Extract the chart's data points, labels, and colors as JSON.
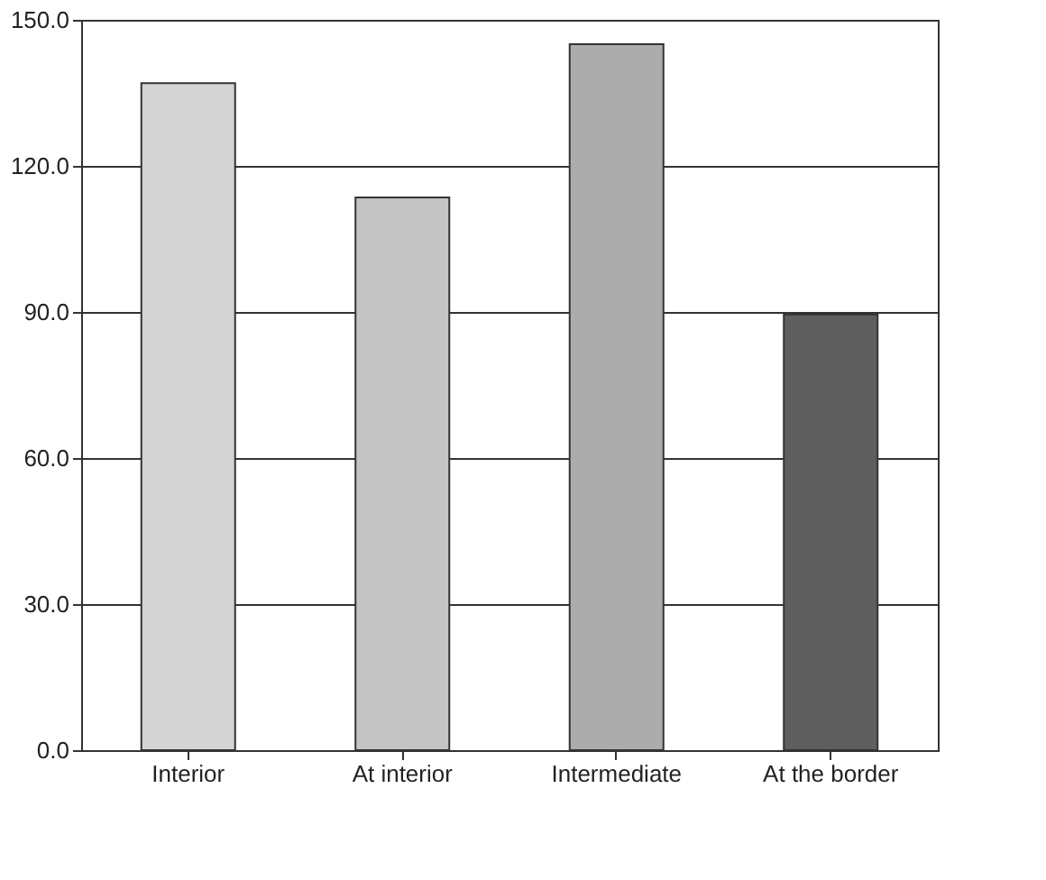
{
  "chart_data": {
    "type": "bar",
    "categories": [
      "Interior",
      "At interior",
      "Intermediate",
      "At the border"
    ],
    "values": [
      137,
      113.5,
      145,
      89.5
    ],
    "colors": [
      "#d4d4d4",
      "#c4c4c4",
      "#acacac",
      "#5e5e5e"
    ],
    "ylim": [
      0,
      150
    ],
    "yticks": [
      {
        "value": 0,
        "label": "0.0"
      },
      {
        "value": 30,
        "label": "30.0"
      },
      {
        "value": 60,
        "label": "60.0"
      },
      {
        "value": 90,
        "label": "90.0"
      },
      {
        "value": 120,
        "label": "120.0"
      },
      {
        "value": 150,
        "label": "150.0"
      }
    ],
    "grid": "y",
    "legend": false
  }
}
